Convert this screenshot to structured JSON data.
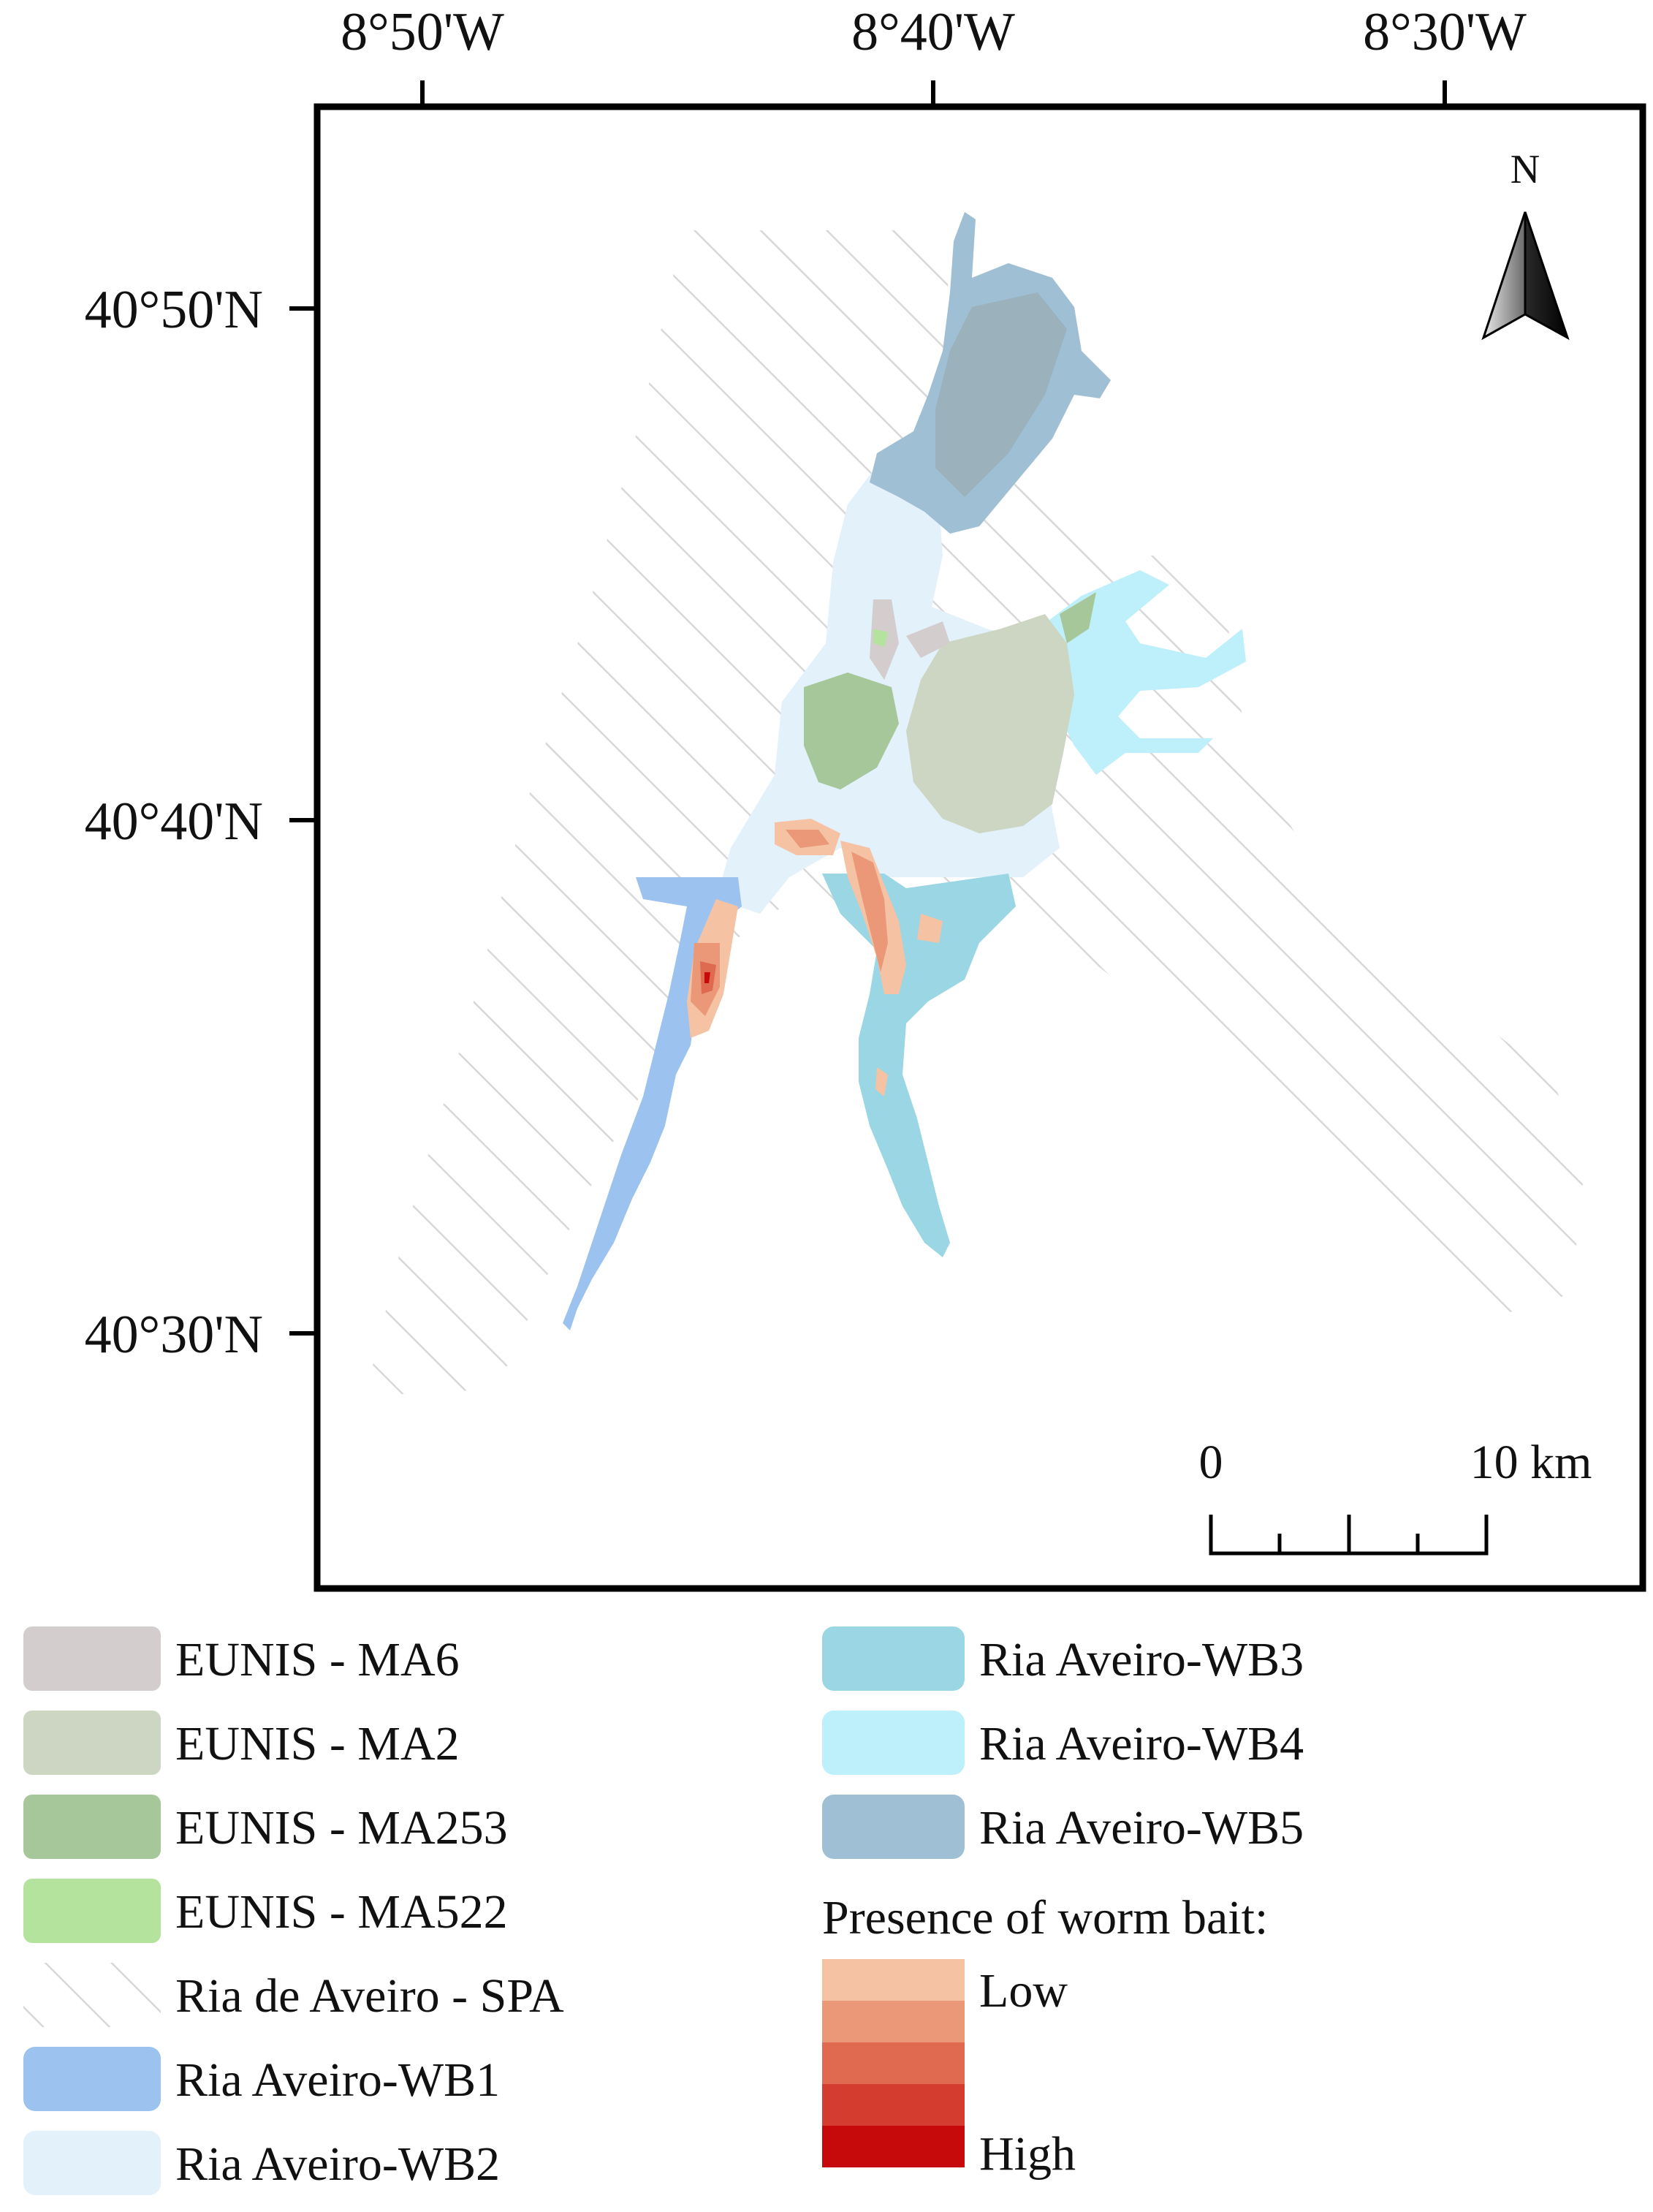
{
  "map": {
    "north_arrow_label": "N",
    "lon_labels": [
      "8°50'W",
      "8°40'W",
      "8°30'W"
    ],
    "lat_labels": [
      "40°50'N",
      "40°40'N",
      "40°30'N"
    ],
    "scale_bar": {
      "start_label": "0",
      "end_label": "10 km"
    }
  },
  "colors": {
    "wb1": "#9cc3f0",
    "wb2": "#e3f1fb",
    "wb3": "#9ad6e3",
    "wb4": "#bdf0fa",
    "wb5": "#9fbfd5",
    "ma6": "#d3cdcd",
    "ma2": "#cdd5c3",
    "ma253": "#a6c79a",
    "ma522": "#b3e39d",
    "spa_hatch": "#d8d8d8",
    "bait_low": "#f5c3a4",
    "bait_2": "#ea9878",
    "bait_3": "#df6a50",
    "bait_4": "#d33c2e",
    "bait_high": "#c60a0c"
  },
  "legend": {
    "left": [
      {
        "key": "ma6",
        "label": "EUNIS - MA6"
      },
      {
        "key": "ma2",
        "label": "EUNIS - MA2"
      },
      {
        "key": "ma253",
        "label": "EUNIS - MA253"
      },
      {
        "key": "ma522",
        "label": "EUNIS - MA522"
      },
      {
        "key": "spa",
        "label": "Ria de Aveiro - SPA"
      },
      {
        "key": "wb1",
        "label": "Ria Aveiro-WB1"
      },
      {
        "key": "wb2",
        "label": "Ria Aveiro-WB2"
      }
    ],
    "right": [
      {
        "key": "wb3",
        "label": "Ria Aveiro-WB3"
      },
      {
        "key": "wb4",
        "label": "Ria Aveiro-WB4"
      },
      {
        "key": "wb5",
        "label": "Ria Aveiro-WB5"
      }
    ],
    "bait_title": "Presence of worm bait:",
    "bait_low_label": "Low",
    "bait_high_label": "High"
  }
}
